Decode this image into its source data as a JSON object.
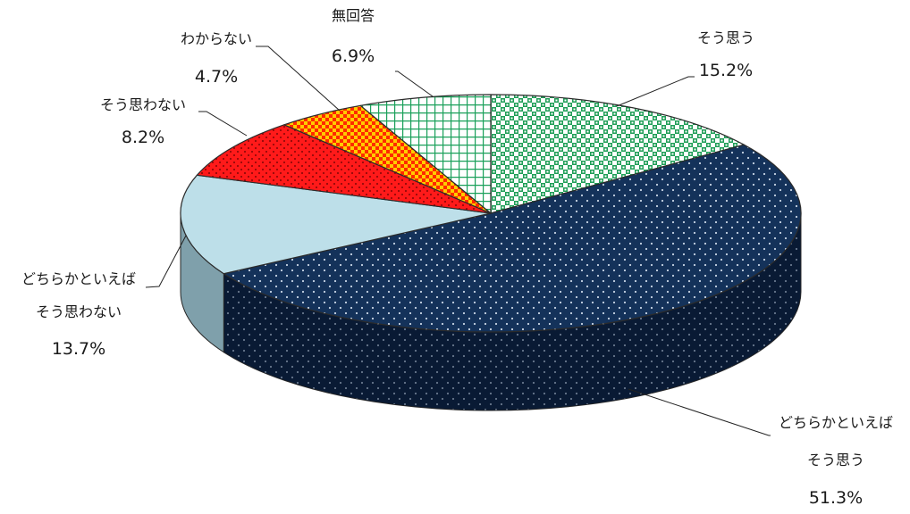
{
  "chart_data": {
    "type": "pie",
    "title": "",
    "slices": [
      {
        "label_lines": [
          "そう思う"
        ],
        "value": 15.2,
        "value_label": "15.2%",
        "color": "#21a05a"
      },
      {
        "label_lines": [
          "どちらかといえば",
          "そう思う"
        ],
        "value": 51.3,
        "value_label": "51.3%",
        "color": "#14325a"
      },
      {
        "label_lines": [
          "どちらかといえば",
          "そう思わない"
        ],
        "value": 13.7,
        "value_label": "13.7%",
        "color": "#b9dde8"
      },
      {
        "label_lines": [
          "そう思わない"
        ],
        "value": 8.2,
        "value_label": "8.2%",
        "color": "#ff1a1a"
      },
      {
        "label_lines": [
          "わからない"
        ],
        "value": 4.7,
        "value_label": "4.7%",
        "color": "#ffcc00"
      },
      {
        "label_lines": [
          "無回答"
        ],
        "value": 6.9,
        "value_label": "6.9%",
        "color": "#1aa05a"
      }
    ],
    "legend": "none",
    "style": "3d-exploded-none"
  }
}
